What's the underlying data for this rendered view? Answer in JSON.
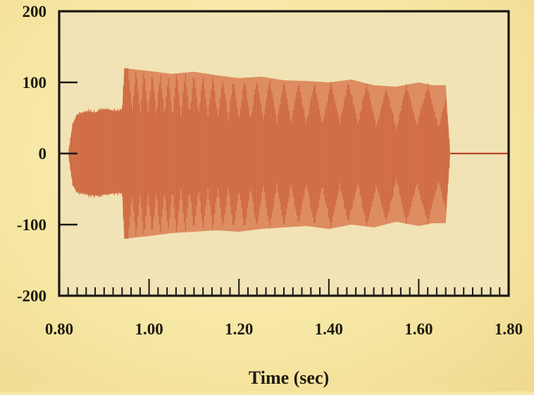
{
  "chart_data": {
    "type": "line",
    "title": "",
    "xlabel": "Time (sec)",
    "ylabel": "",
    "xlim": [
      0.8,
      1.8
    ],
    "ylim": [
      -200,
      200
    ],
    "x_ticks": [
      0.8,
      1.0,
      1.2,
      1.4,
      1.6,
      1.8
    ],
    "x_tick_labels": [
      "0.80",
      "1.00",
      "1.20",
      "1.40",
      "1.60",
      "1.80"
    ],
    "y_ticks": [
      200,
      100,
      0,
      -100,
      -200
    ],
    "y_tick_labels": [
      "200",
      "100",
      "0",
      "-100",
      "-200"
    ],
    "x_minor_tick_step": 0.02,
    "grid": false,
    "legend": "none",
    "colors": {
      "plot_background": "#f1e3b5",
      "signal_fill": "#d9734a",
      "signal_inner": "#c85a35",
      "baseline": "#b5462a",
      "frame": "#1a1712"
    },
    "series": [
      {
        "signal_segments": [
          {
            "x_start": 0.8,
            "x_end": 0.82,
            "amplitude": 0
          },
          {
            "x_start": 0.82,
            "x_end": 0.94,
            "amplitude": 62
          },
          {
            "x_start": 0.94,
            "x_end": 1.67,
            "amplitude": 122
          },
          {
            "x_start": 1.67,
            "x_end": 1.8,
            "amplitude": 0
          }
        ],
        "envelope_top": [
          [
            0.82,
            0
          ],
          [
            0.83,
            42
          ],
          [
            0.84,
            55
          ],
          [
            0.86,
            60
          ],
          [
            0.88,
            58
          ],
          [
            0.9,
            63
          ],
          [
            0.93,
            60
          ],
          [
            0.94,
            62
          ],
          [
            0.945,
            120
          ],
          [
            0.97,
            118
          ],
          [
            1.0,
            116
          ],
          [
            1.05,
            112
          ],
          [
            1.1,
            115
          ],
          [
            1.15,
            110
          ],
          [
            1.2,
            106
          ],
          [
            1.25,
            108
          ],
          [
            1.3,
            103
          ],
          [
            1.35,
            102
          ],
          [
            1.4,
            100
          ],
          [
            1.45,
            104
          ],
          [
            1.5,
            96
          ],
          [
            1.55,
            94
          ],
          [
            1.6,
            100
          ],
          [
            1.63,
            96
          ],
          [
            1.66,
            96
          ],
          [
            1.67,
            0
          ]
        ],
        "envelope_bottom": [
          [
            0.82,
            0
          ],
          [
            0.83,
            -45
          ],
          [
            0.84,
            -55
          ],
          [
            0.86,
            -58
          ],
          [
            0.88,
            -60
          ],
          [
            0.9,
            -58
          ],
          [
            0.93,
            -56
          ],
          [
            0.94,
            -55
          ],
          [
            0.945,
            -120
          ],
          [
            0.97,
            -118
          ],
          [
            1.0,
            -116
          ],
          [
            1.05,
            -112
          ],
          [
            1.1,
            -110
          ],
          [
            1.15,
            -108
          ],
          [
            1.2,
            -110
          ],
          [
            1.25,
            -106
          ],
          [
            1.3,
            -104
          ],
          [
            1.35,
            -102
          ],
          [
            1.4,
            -106
          ],
          [
            1.45,
            -100
          ],
          [
            1.5,
            -104
          ],
          [
            1.55,
            -96
          ],
          [
            1.6,
            -102
          ],
          [
            1.63,
            -98
          ],
          [
            1.66,
            -98
          ],
          [
            1.67,
            0
          ]
        ],
        "beat_notch_centers": [
          0.962,
          0.98,
          0.998,
          1.016,
          1.034,
          1.052,
          1.071,
          1.09,
          1.11,
          1.131,
          1.153,
          1.176,
          1.2,
          1.226,
          1.254,
          1.284,
          1.316,
          1.35,
          1.386,
          1.424,
          1.464,
          1.506,
          1.55,
          1.596,
          1.644
        ],
        "beat_notch_depth": 60
      }
    ]
  }
}
